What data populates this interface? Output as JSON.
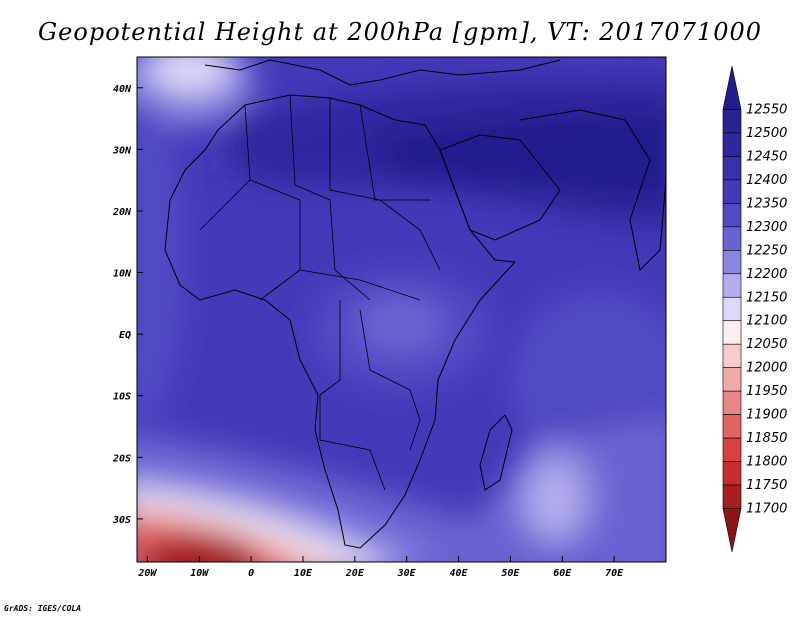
{
  "title": "Geopotential Height at 200hPa [gpm], VT: 2017071000",
  "credit": "GrADS: IGES/COLA",
  "map": {
    "lon_range": [
      -22,
      80
    ],
    "lat_range": [
      -37,
      45
    ],
    "lon_ticks": [
      {
        "lon": -20,
        "label": "20W"
      },
      {
        "lon": -10,
        "label": "10W"
      },
      {
        "lon": 0,
        "label": "0"
      },
      {
        "lon": 10,
        "label": "10E"
      },
      {
        "lon": 20,
        "label": "20E"
      },
      {
        "lon": 30,
        "label": "30E"
      },
      {
        "lon": 40,
        "label": "40E"
      },
      {
        "lon": 50,
        "label": "50E"
      },
      {
        "lon": 60,
        "label": "60E"
      },
      {
        "lon": 70,
        "label": "70E"
      }
    ],
    "lat_ticks": [
      {
        "lat": 40,
        "label": "40N"
      },
      {
        "lat": 30,
        "label": "30N"
      },
      {
        "lat": 20,
        "label": "20N"
      },
      {
        "lat": 10,
        "label": "10N"
      },
      {
        "lat": 0,
        "label": "EQ"
      },
      {
        "lat": -10,
        "label": "10S"
      },
      {
        "lat": -20,
        "label": "20S"
      },
      {
        "lat": -30,
        "label": "30S"
      }
    ]
  },
  "colorbar": {
    "levels": [
      12550,
      12500,
      12450,
      12400,
      12350,
      12300,
      12250,
      12200,
      12150,
      12100,
      12050,
      12000,
      11950,
      11900,
      11850,
      11800,
      11750,
      11700
    ],
    "colors": [
      "#241b8e",
      "#2a2296",
      "#3026a0",
      "#3a30ad",
      "#4539b9",
      "#5148c4",
      "#6a62d2",
      "#8b85e0",
      "#b2aeee",
      "#dcdaf8",
      "#fbeeee",
      "#f6cccc",
      "#f1a9a9",
      "#ea8585",
      "#e26262",
      "#d94040",
      "#c82b2b",
      "#a61d1d",
      "#8c1414"
    ]
  }
}
